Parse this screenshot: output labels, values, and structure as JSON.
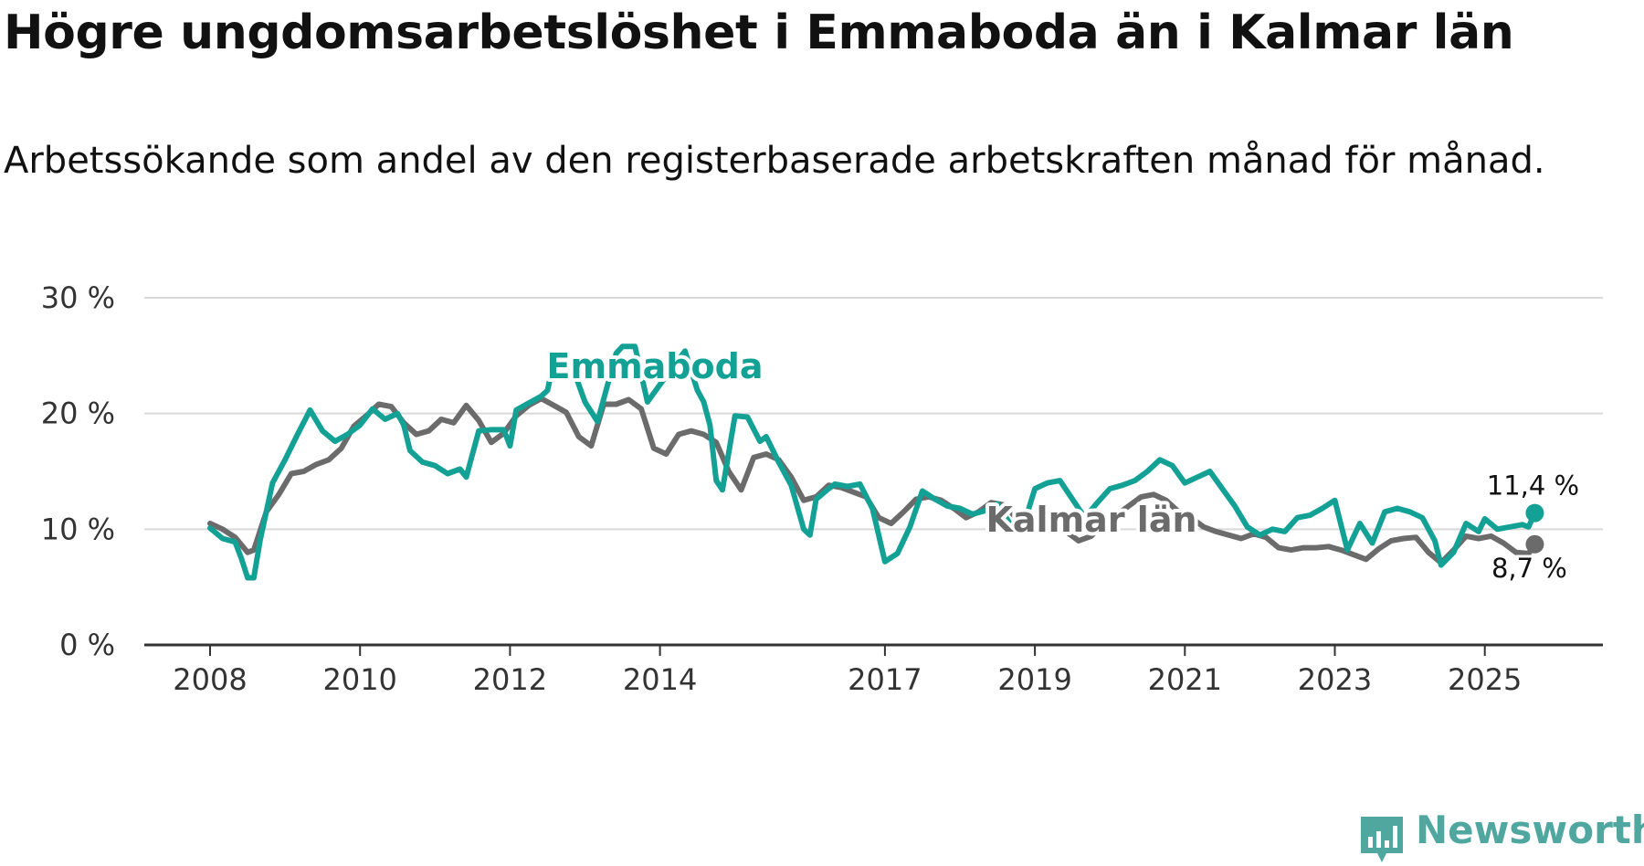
{
  "title": "Högre ungdomsarbetslöshet i Emmaboda än i Kalmar län",
  "subtitle": "Arbetssökande som andel av den registerbaserade arbetskraften månad för månad.",
  "brand": {
    "name": "Newsworthy",
    "icon": "newsworthy-logo-icon",
    "color": "#4fa7a0"
  },
  "chart_data": {
    "type": "line",
    "ylim": [
      0,
      30
    ],
    "y_ticks": [
      0,
      10,
      20,
      30
    ],
    "y_tick_labels": [
      "0 %",
      "10 %",
      "20 %",
      "30 %"
    ],
    "x_tick_years": [
      2008,
      2010,
      2012,
      2014,
      2017,
      2019,
      2021,
      2023,
      2025
    ],
    "x_tick_labels": [
      "2008",
      "2010",
      "2012",
      "2014",
      "2017",
      "2019",
      "2021",
      "2023",
      "2025"
    ],
    "grid": true,
    "series": [
      {
        "name": "Emmaboda",
        "label": "Emmaboda",
        "color": "#13a196",
        "start": "2008-01",
        "end_value_label": "11,4 %",
        "keypoints": [
          [
            "2008-01",
            10.1
          ],
          [
            "2008-03",
            9.2
          ],
          [
            "2008-05",
            8.9
          ],
          [
            "2008-06",
            7.5
          ],
          [
            "2008-07",
            5.8
          ],
          [
            "2008-08",
            5.8
          ],
          [
            "2008-09",
            9.0
          ],
          [
            "2008-11",
            14.0
          ],
          [
            "2009-01",
            16.0
          ],
          [
            "2009-03",
            18.2
          ],
          [
            "2009-05",
            20.3
          ],
          [
            "2009-07",
            18.5
          ],
          [
            "2009-09",
            17.6
          ],
          [
            "2009-11",
            18.2
          ],
          [
            "2010-01",
            19.0
          ],
          [
            "2010-03",
            20.4
          ],
          [
            "2010-05",
            19.5
          ],
          [
            "2010-07",
            20.0
          ],
          [
            "2010-08",
            19.0
          ],
          [
            "2010-09",
            16.8
          ],
          [
            "2010-11",
            15.8
          ],
          [
            "2011-01",
            15.5
          ],
          [
            "2011-03",
            14.8
          ],
          [
            "2011-05",
            15.2
          ],
          [
            "2011-06",
            14.5
          ],
          [
            "2011-08",
            18.5
          ],
          [
            "2011-10",
            18.6
          ],
          [
            "2011-12",
            18.6
          ],
          [
            "2012-01",
            17.2
          ],
          [
            "2012-02",
            20.3
          ],
          [
            "2012-04",
            20.9
          ],
          [
            "2012-06",
            21.5
          ],
          [
            "2012-07",
            22.0
          ],
          [
            "2012-08",
            24.5
          ],
          [
            "2012-10",
            23.0
          ],
          [
            "2012-11",
            24.0
          ],
          [
            "2013-01",
            21.0
          ],
          [
            "2013-03",
            19.3
          ],
          [
            "2013-06",
            25.2
          ],
          [
            "2013-07",
            25.8
          ],
          [
            "2013-09",
            25.8
          ],
          [
            "2013-11",
            21.0
          ],
          [
            "2014-01",
            22.5
          ],
          [
            "2014-05",
            25.4
          ],
          [
            "2014-07",
            22.0
          ],
          [
            "2014-08",
            21.0
          ],
          [
            "2014-09",
            19.0
          ],
          [
            "2014-10",
            14.2
          ],
          [
            "2014-11",
            13.4
          ],
          [
            "2015-01",
            19.8
          ],
          [
            "2015-03",
            19.7
          ],
          [
            "2015-05",
            17.6
          ],
          [
            "2015-06",
            18.0
          ],
          [
            "2015-08",
            15.8
          ],
          [
            "2015-10",
            13.8
          ],
          [
            "2015-12",
            10.0
          ],
          [
            "2016-01",
            9.5
          ],
          [
            "2016-02",
            12.6
          ],
          [
            "2016-04",
            13.5
          ],
          [
            "2016-05",
            13.9
          ],
          [
            "2016-07",
            13.7
          ],
          [
            "2016-09",
            13.9
          ],
          [
            "2016-11",
            11.8
          ],
          [
            "2017-01",
            7.2
          ],
          [
            "2017-03",
            7.9
          ],
          [
            "2017-05",
            10.2
          ],
          [
            "2017-07",
            13.3
          ],
          [
            "2017-09",
            12.6
          ],
          [
            "2017-11",
            12.0
          ],
          [
            "2018-01",
            11.8
          ],
          [
            "2018-03",
            11.3
          ],
          [
            "2018-05",
            11.6
          ],
          [
            "2018-07",
            12.2
          ],
          [
            "2018-09",
            10.5
          ],
          [
            "2018-11",
            10.0
          ],
          [
            "2019-01",
            13.5
          ],
          [
            "2019-03",
            14.0
          ],
          [
            "2019-05",
            14.2
          ],
          [
            "2019-07",
            12.6
          ],
          [
            "2019-09",
            11.0
          ],
          [
            "2019-11",
            12.3
          ],
          [
            "2020-01",
            13.5
          ],
          [
            "2020-03",
            13.8
          ],
          [
            "2020-05",
            14.2
          ],
          [
            "2020-07",
            15.0
          ],
          [
            "2020-09",
            16.0
          ],
          [
            "2020-11",
            15.5
          ],
          [
            "2021-01",
            14.0
          ],
          [
            "2021-03",
            14.5
          ],
          [
            "2021-05",
            15.0
          ],
          [
            "2021-07",
            13.5
          ],
          [
            "2021-09",
            12.0
          ],
          [
            "2021-11",
            10.2
          ],
          [
            "2022-01",
            9.5
          ],
          [
            "2022-03",
            10.0
          ],
          [
            "2022-05",
            9.8
          ],
          [
            "2022-07",
            11.0
          ],
          [
            "2022-09",
            11.2
          ],
          [
            "2022-11",
            11.8
          ],
          [
            "2023-01",
            12.5
          ],
          [
            "2023-03",
            8.2
          ],
          [
            "2023-05",
            10.5
          ],
          [
            "2023-07",
            8.8
          ],
          [
            "2023-09",
            11.5
          ],
          [
            "2023-11",
            11.8
          ],
          [
            "2024-01",
            11.5
          ],
          [
            "2024-03",
            11.0
          ],
          [
            "2024-05",
            9.0
          ],
          [
            "2024-06",
            6.9
          ],
          [
            "2024-08",
            8.0
          ],
          [
            "2024-10",
            10.5
          ],
          [
            "2024-12",
            9.8
          ],
          [
            "2025-01",
            10.9
          ],
          [
            "2025-03",
            10.0
          ],
          [
            "2025-05",
            10.2
          ],
          [
            "2025-07",
            10.4
          ],
          [
            "2025-08",
            10.2
          ],
          [
            "2025-09",
            11.4
          ]
        ]
      },
      {
        "name": "Kalmar län",
        "label": "Kalmar län",
        "color": "#6b6b6b",
        "start": "2008-01",
        "end_value_label": "8,7 %",
        "keypoints": [
          [
            "2008-01",
            10.5
          ],
          [
            "2008-03",
            10.0
          ],
          [
            "2008-05",
            9.3
          ],
          [
            "2008-07",
            8.0
          ],
          [
            "2008-08",
            8.2
          ],
          [
            "2008-10",
            11.5
          ],
          [
            "2008-12",
            13.0
          ],
          [
            "2009-02",
            14.8
          ],
          [
            "2009-04",
            15.0
          ],
          [
            "2009-06",
            15.6
          ],
          [
            "2009-08",
            16.0
          ],
          [
            "2009-10",
            17.0
          ],
          [
            "2009-12",
            18.9
          ],
          [
            "2010-02",
            19.8
          ],
          [
            "2010-04",
            20.8
          ],
          [
            "2010-06",
            20.6
          ],
          [
            "2010-08",
            19.2
          ],
          [
            "2010-10",
            18.2
          ],
          [
            "2010-12",
            18.5
          ],
          [
            "2011-02",
            19.5
          ],
          [
            "2011-04",
            19.2
          ],
          [
            "2011-06",
            20.7
          ],
          [
            "2011-08",
            19.4
          ],
          [
            "2011-10",
            17.5
          ],
          [
            "2011-12",
            18.3
          ],
          [
            "2012-02",
            19.8
          ],
          [
            "2012-04",
            20.7
          ],
          [
            "2012-06",
            21.3
          ],
          [
            "2012-08",
            20.7
          ],
          [
            "2012-10",
            20.1
          ],
          [
            "2012-12",
            18.0
          ],
          [
            "2013-02",
            17.2
          ],
          [
            "2013-04",
            20.8
          ],
          [
            "2013-06",
            20.8
          ],
          [
            "2013-08",
            21.2
          ],
          [
            "2013-10",
            20.4
          ],
          [
            "2013-12",
            17.0
          ],
          [
            "2014-02",
            16.5
          ],
          [
            "2014-04",
            18.2
          ],
          [
            "2014-06",
            18.5
          ],
          [
            "2014-08",
            18.2
          ],
          [
            "2014-10",
            17.5
          ],
          [
            "2014-12",
            15.0
          ],
          [
            "2015-02",
            13.4
          ],
          [
            "2015-04",
            16.2
          ],
          [
            "2015-06",
            16.5
          ],
          [
            "2015-08",
            16.0
          ],
          [
            "2015-10",
            14.5
          ],
          [
            "2015-12",
            12.5
          ],
          [
            "2016-02",
            12.8
          ],
          [
            "2016-04",
            13.8
          ],
          [
            "2016-06",
            13.6
          ],
          [
            "2016-08",
            13.2
          ],
          [
            "2016-10",
            12.8
          ],
          [
            "2016-12",
            11.0
          ],
          [
            "2017-02",
            10.5
          ],
          [
            "2017-04",
            11.5
          ],
          [
            "2017-06",
            12.6
          ],
          [
            "2017-08",
            12.8
          ],
          [
            "2017-10",
            12.5
          ],
          [
            "2017-12",
            11.8
          ],
          [
            "2018-02",
            11.0
          ],
          [
            "2018-04",
            11.5
          ],
          [
            "2018-06",
            12.3
          ],
          [
            "2018-08",
            12.1
          ],
          [
            "2018-10",
            11.0
          ],
          [
            "2018-12",
            10.5
          ],
          [
            "2019-02",
            10.2
          ],
          [
            "2019-04",
            10.3
          ],
          [
            "2019-06",
            9.8
          ],
          [
            "2019-08",
            9.0
          ],
          [
            "2019-10",
            9.4
          ],
          [
            "2019-12",
            10.5
          ],
          [
            "2020-02",
            11.2
          ],
          [
            "2020-04",
            12.0
          ],
          [
            "2020-06",
            12.8
          ],
          [
            "2020-08",
            13.0
          ],
          [
            "2020-10",
            12.5
          ],
          [
            "2020-12",
            11.5
          ],
          [
            "2021-02",
            11.0
          ],
          [
            "2021-04",
            10.2
          ],
          [
            "2021-06",
            9.8
          ],
          [
            "2021-08",
            9.5
          ],
          [
            "2021-10",
            9.2
          ],
          [
            "2021-12",
            9.6
          ],
          [
            "2022-02",
            9.3
          ],
          [
            "2022-04",
            8.4
          ],
          [
            "2022-06",
            8.2
          ],
          [
            "2022-08",
            8.4
          ],
          [
            "2022-10",
            8.4
          ],
          [
            "2022-12",
            8.5
          ],
          [
            "2023-02",
            8.2
          ],
          [
            "2023-04",
            7.8
          ],
          [
            "2023-06",
            7.4
          ],
          [
            "2023-08",
            8.3
          ],
          [
            "2023-10",
            9.0
          ],
          [
            "2023-12",
            9.2
          ],
          [
            "2024-02",
            9.3
          ],
          [
            "2024-04",
            8.0
          ],
          [
            "2024-06",
            7.1
          ],
          [
            "2024-08",
            8.2
          ],
          [
            "2024-10",
            9.4
          ],
          [
            "2024-12",
            9.2
          ],
          [
            "2025-02",
            9.4
          ],
          [
            "2025-04",
            8.8
          ],
          [
            "2025-06",
            8.0
          ],
          [
            "2025-08",
            7.9
          ],
          [
            "2025-09",
            8.7
          ]
        ]
      }
    ]
  }
}
